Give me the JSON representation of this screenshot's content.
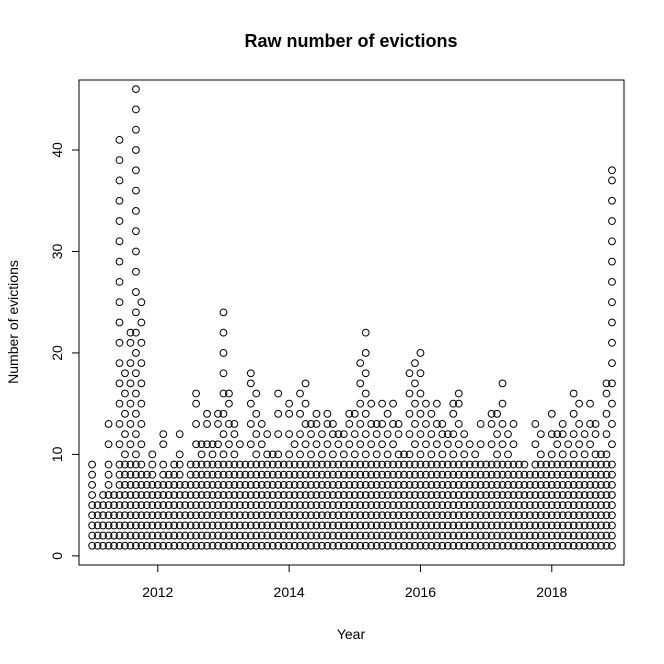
{
  "chart_data": {
    "type": "scatter",
    "title": "Raw number of evictions",
    "xlabel": "Year",
    "ylabel": "Number of evictions",
    "xlim": [
      2010.8,
      2019.1
    ],
    "ylim": [
      -0.9,
      46.9
    ],
    "x_ticks": [
      2012,
      2014,
      2016,
      2018
    ],
    "y_ticks": [
      0,
      10,
      20,
      30,
      40
    ],
    "x_tick_labels": [
      "2012",
      "2014",
      "2016",
      "2018"
    ],
    "y_tick_labels": [
      "0",
      "10",
      "20",
      "30",
      "40"
    ],
    "grid": false,
    "legend": "none",
    "marker": "open-circle",
    "colors": {
      "points": "#000000",
      "axes": "#000000",
      "background": "#ffffff"
    },
    "note_on_density": "Monthly observations from Jan 2011 to Dec 2018; each month contains values from 1 up to the monthly maximum listed below.",
    "months": [
      "2011-01",
      "2011-02",
      "2011-03",
      "2011-04",
      "2011-05",
      "2011-06",
      "2011-07",
      "2011-08",
      "2011-09",
      "2011-10",
      "2011-11",
      "2011-12",
      "2012-01",
      "2012-02",
      "2012-03",
      "2012-04",
      "2012-05",
      "2012-06",
      "2012-07",
      "2012-08",
      "2012-09",
      "2012-10",
      "2012-11",
      "2012-12",
      "2013-01",
      "2013-02",
      "2013-03",
      "2013-04",
      "2013-05",
      "2013-06",
      "2013-07",
      "2013-08",
      "2013-09",
      "2013-10",
      "2013-11",
      "2013-12",
      "2014-01",
      "2014-02",
      "2014-03",
      "2014-04",
      "2014-05",
      "2014-06",
      "2014-07",
      "2014-08",
      "2014-09",
      "2014-10",
      "2014-11",
      "2014-12",
      "2015-01",
      "2015-02",
      "2015-03",
      "2015-04",
      "2015-05",
      "2015-06",
      "2015-07",
      "2015-08",
      "2015-09",
      "2015-10",
      "2015-11",
      "2015-12",
      "2016-01",
      "2016-02",
      "2016-03",
      "2016-04",
      "2016-05",
      "2016-06",
      "2016-07",
      "2016-08",
      "2016-09",
      "2016-10",
      "2016-11",
      "2016-12",
      "2017-01",
      "2017-02",
      "2017-03",
      "2017-04",
      "2017-05",
      "2017-06",
      "2017-07",
      "2017-08",
      "2017-09",
      "2017-10",
      "2017-11",
      "2017-12",
      "2018-01",
      "2018-02",
      "2018-03",
      "2018-04",
      "2018-05",
      "2018-06",
      "2018-07",
      "2018-08",
      "2018-09",
      "2018-10",
      "2018-11",
      "2018-12"
    ],
    "monthly_max_evictions": [
      9,
      5,
      6,
      13,
      6,
      41,
      18,
      22,
      46,
      25,
      8,
      10,
      7,
      12,
      8,
      9,
      12,
      7,
      9,
      16,
      11,
      14,
      11,
      14,
      24,
      16,
      13,
      11,
      9,
      18,
      16,
      13,
      12,
      10,
      16,
      9,
      15,
      11,
      16,
      17,
      13,
      14,
      12,
      14,
      13,
      12,
      12,
      14,
      14,
      19,
      22,
      15,
      13,
      15,
      14,
      15,
      13,
      10,
      18,
      19,
      20,
      15,
      14,
      15,
      13,
      12,
      15,
      16,
      12,
      11,
      10,
      13,
      9,
      14,
      14,
      17,
      12,
      13,
      9,
      9,
      8,
      13,
      12,
      9,
      14,
      12,
      13,
      11,
      16,
      15,
      12,
      15,
      13,
      10,
      17,
      38
    ]
  }
}
